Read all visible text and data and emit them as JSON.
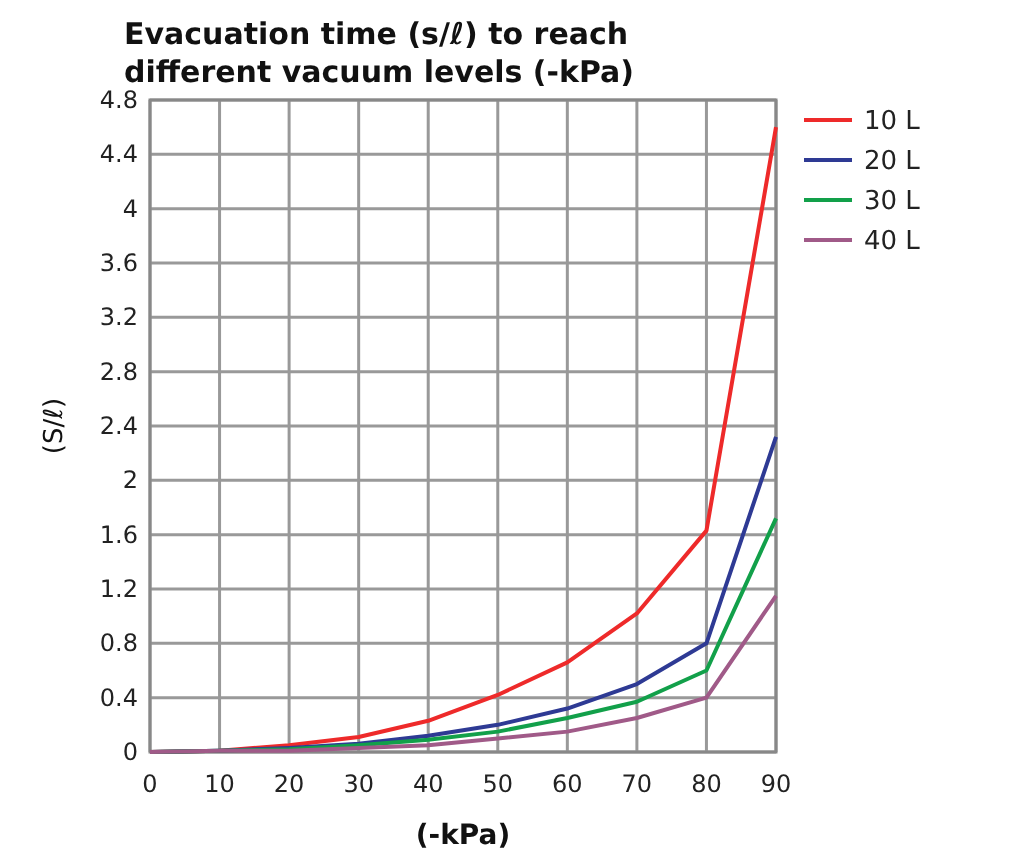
{
  "chart_data": {
    "type": "line",
    "title": "Evacuation time (s/ℓ) to reach\ndifferent vacuum levels (-kPa)",
    "xlabel": "(-kPa)",
    "ylabel": "(S/ℓ)",
    "x": [
      0,
      10,
      20,
      30,
      40,
      50,
      60,
      70,
      80,
      90
    ],
    "xlim": [
      0,
      90
    ],
    "xticks": [
      0,
      10,
      20,
      30,
      40,
      50,
      60,
      70,
      80,
      90
    ],
    "ylim": [
      0,
      4.8
    ],
    "yticks": [
      0,
      0.4,
      0.8,
      1.2,
      1.6,
      2,
      2.4,
      2.8,
      3.2,
      3.6,
      4,
      4.4,
      4.8
    ],
    "grid": true,
    "legend": "right",
    "marker": "none",
    "line_style": "solid",
    "series": [
      {
        "name": "10 L",
        "color": "#ee2a2a",
        "values": [
          0,
          0.01,
          0.05,
          0.11,
          0.23,
          0.42,
          0.66,
          1.02,
          1.63,
          4.6
        ]
      },
      {
        "name": "20 L",
        "color": "#2e3a94",
        "values": [
          0,
          0.01,
          0.03,
          0.06,
          0.12,
          0.2,
          0.32,
          0.5,
          0.8,
          2.32
        ]
      },
      {
        "name": "30 L",
        "color": "#12a04a",
        "values": [
          0,
          0.01,
          0.02,
          0.05,
          0.09,
          0.15,
          0.25,
          0.37,
          0.6,
          1.72
        ]
      },
      {
        "name": "40 L",
        "color": "#a05a88",
        "values": [
          0,
          0.01,
          0.01,
          0.03,
          0.05,
          0.1,
          0.15,
          0.25,
          0.4,
          1.15
        ]
      }
    ]
  }
}
